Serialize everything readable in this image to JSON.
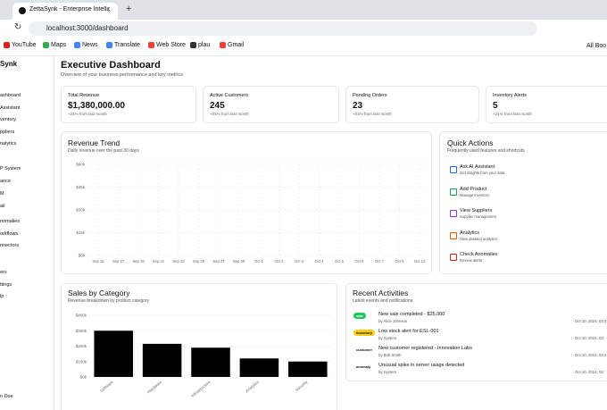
{
  "browser": {
    "tab_title": "ZettaSynk - Enterprise Intellig",
    "url": "localhost:3000/dashboard",
    "bookmarks": [
      "YouTube",
      "Maps",
      "News",
      "Translate",
      "Web Store",
      "plau",
      "Gmail"
    ],
    "all_bookmarks": "All Boo"
  },
  "sidebar": {
    "brand": "Synk",
    "nav": [
      "ashboard",
      "Assistant",
      "ventory",
      "ppliers",
      "nalytics",
      "P System",
      "ance",
      "M",
      "ail",
      "nomalies",
      "orkflows",
      "nnectors",
      "ers",
      "ttings",
      "lp"
    ],
    "user": "n Doe"
  },
  "header": {
    "title": "Executive Dashboard",
    "subtitle": "Overview of your business performance and key metrics"
  },
  "kpis": [
    {
      "label": "Total Revenue",
      "value": "$1,380,000.00",
      "note": "+21% from last month"
    },
    {
      "label": "Active Customers",
      "value": "245",
      "note": "+21% from last month"
    },
    {
      "label": "Pending Orders",
      "value": "23",
      "note": "+21% from last month"
    },
    {
      "label": "Inventory Alerts",
      "value": "5",
      "note": "+21% from last month"
    }
  ],
  "revenue_trend": {
    "title": "Revenue Trend",
    "subtitle": "Daily revenue over the past 30 days",
    "ylim": [
      0,
      60000
    ],
    "yticks": [
      {
        "value": 0,
        "label": "$0k"
      },
      {
        "value": 15000,
        "label": "$15k"
      },
      {
        "value": 30000,
        "label": "$30k"
      },
      {
        "value": 45000,
        "label": "$45k"
      },
      {
        "value": 60000,
        "label": "$60k"
      }
    ],
    "categories": [
      "Sep 15",
      "Sep 17",
      "Sep 19",
      "Sep 21",
      "Sep 23",
      "Sep 25",
      "Sep 27",
      "Sep 29",
      "Oct 1",
      "Oct 2",
      "Oct 3",
      "Oct 4",
      "Oct 5",
      "Oct 6",
      "Oct 7",
      "Oct 9",
      "Oct 13"
    ]
  },
  "quick_actions": {
    "title": "Quick Actions",
    "subtitle": "Frequently used features and shortcuts",
    "items": [
      {
        "label": "Ask AI Assistant",
        "desc": "Get insights from your data"
      },
      {
        "label": "Add Product",
        "desc": "Manage inventory"
      },
      {
        "label": "View Suppliers",
        "desc": "Supplier management"
      },
      {
        "label": "Analytics",
        "desc": "View detailed analytics"
      },
      {
        "label": "Check Anomalies",
        "desc": "Review alerts"
      }
    ]
  },
  "sales_by_category": {
    "type": "bar",
    "title": "Sales by Category",
    "subtitle": "Revenue breakdown by product category",
    "categories": [
      "Software",
      "Hardware",
      "Infrastructure",
      "Analytics",
      "Security"
    ],
    "values": [
      300000,
      215000,
      190000,
      120000,
      100000
    ],
    "color": "#000000",
    "ylim": [
      0,
      400000
    ],
    "yticks": [
      {
        "value": 0,
        "label": "$0k"
      },
      {
        "value": 100000,
        "label": "$100k"
      },
      {
        "value": 200000,
        "label": "$200k"
      },
      {
        "value": 300000,
        "label": "$300k"
      },
      {
        "value": 400000,
        "label": "$400k"
      }
    ]
  },
  "recent_activities": {
    "title": "Recent Activities",
    "subtitle": "Latest events and notifications",
    "items": [
      {
        "badge": "sale",
        "text": "New sale completed - $25,000",
        "by": "by Alice Johnson",
        "time": "Oct 10, 2024, 03:3"
      },
      {
        "badge": "inventory",
        "text": "Low stock alert for ESL-001",
        "by": "by System",
        "time": "Oct 10, 2024, 03:"
      },
      {
        "badge": "customer",
        "text": "New customer registered - Innovation Labs",
        "by": "by Bob Smith",
        "time": "Oct 10, 2024, 03:4"
      },
      {
        "badge": "anomaly",
        "text": "Unusual spike in server usage detected",
        "by": "by System",
        "time": "Oct 10, 2024, 03:"
      }
    ]
  }
}
